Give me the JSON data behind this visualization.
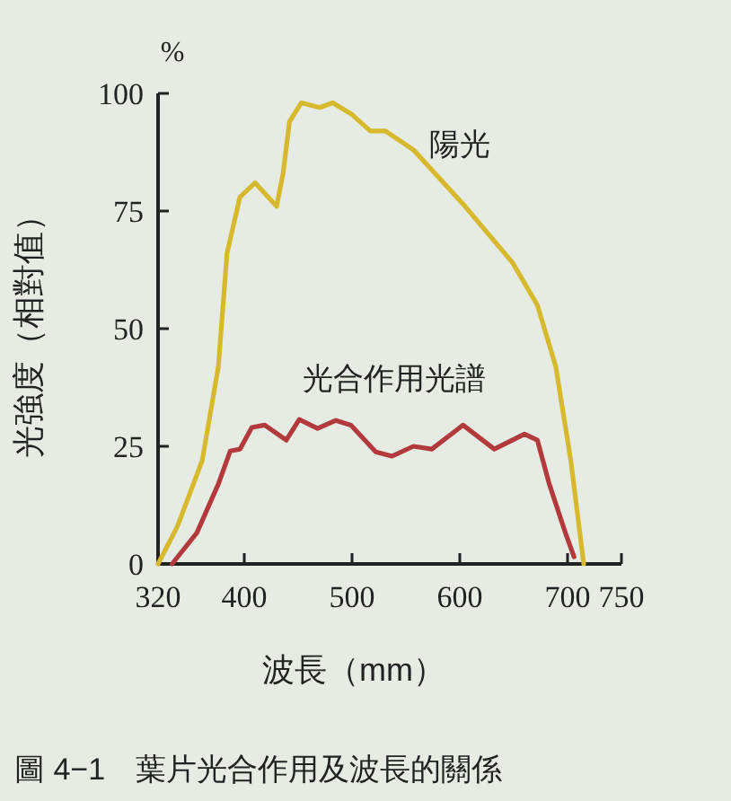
{
  "chart_data": {
    "type": "line",
    "title": "圖 4−1　葉片光合作用及波長的關係",
    "xlabel": "波長（mm）",
    "ylabel": "光強度（相對值）",
    "annotations": [
      "%"
    ],
    "xlim": [
      320,
      750
    ],
    "xticks": [
      320,
      400,
      500,
      600,
      700,
      750
    ],
    "ylim": [
      0,
      100
    ],
    "yticks": [
      0,
      25,
      50,
      75,
      100
    ],
    "grid": false,
    "legend": false,
    "marker": "none",
    "line_style": "solid",
    "series": [
      {
        "name": "陽光",
        "color": "#d6b92c",
        "x": [
          320,
          338,
          361,
          376,
          384,
          396,
          410,
          422,
          430,
          436,
          442,
          453,
          470,
          482,
          500,
          517,
          531,
          557,
          603,
          649,
          672,
          689,
          703,
          715
        ],
        "values": [
          0,
          8,
          22,
          42,
          66,
          78,
          81,
          78,
          76,
          83,
          94,
          98,
          97,
          98,
          95.5,
          92,
          92,
          88,
          76.5,
          64,
          55,
          42,
          22,
          0
        ]
      },
      {
        "name": "光合作用光譜",
        "color": "#b23a3c",
        "x": [
          333,
          356,
          376,
          387,
          396,
          407,
          419,
          439,
          451,
          468,
          485,
          499,
          522,
          537,
          557,
          574,
          603,
          632,
          660,
          672,
          683,
          698,
          706
        ],
        "values": [
          0,
          6.6,
          17,
          24,
          24.4,
          29,
          29.5,
          26.3,
          30.7,
          28.8,
          30.5,
          29.5,
          23.8,
          22.9,
          25,
          24.4,
          29.5,
          24.4,
          27.6,
          26.3,
          17,
          6.6,
          1.5
        ]
      }
    ]
  }
}
